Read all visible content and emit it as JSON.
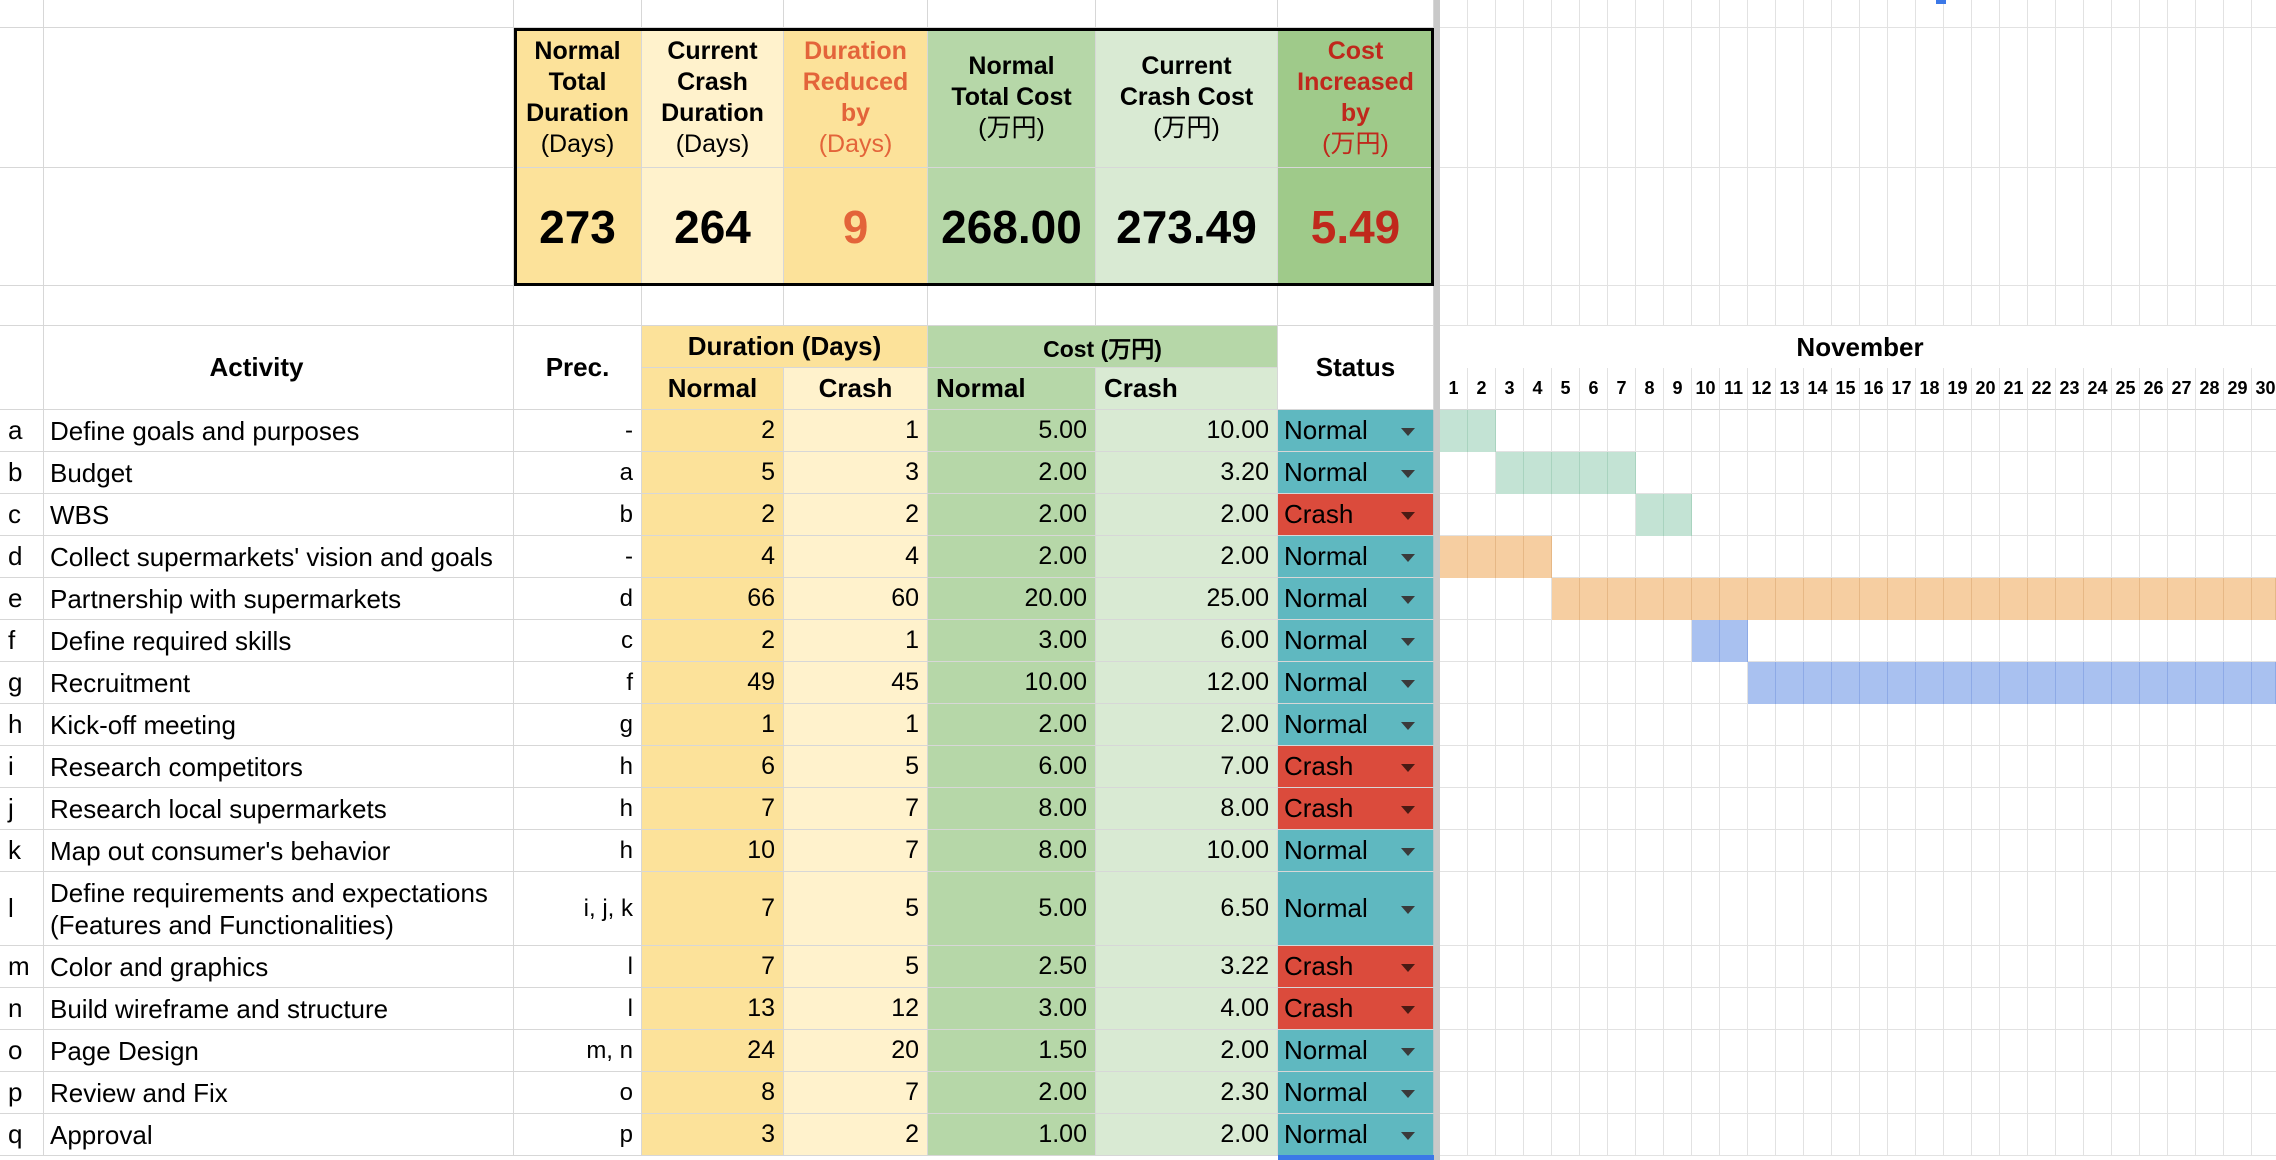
{
  "summary": {
    "headers": [
      {
        "lines": [
          "Normal",
          "Total",
          "Duration"
        ],
        "unit": "(Days)",
        "color": "#000000",
        "bg": "#fce29a"
      },
      {
        "lines": [
          "Current",
          "Crash",
          "Duration"
        ],
        "unit": "(Days)",
        "color": "#000000",
        "bg": "#fff2cc"
      },
      {
        "lines": [
          "Duration",
          "Reduced",
          "by"
        ],
        "unit": "(Days)",
        "color": "#e3643a",
        "bg": "#fce29a"
      },
      {
        "lines": [
          "Normal",
          "Total Cost"
        ],
        "unit": "(万円)",
        "color": "#000000",
        "bg": "#b6d7a8"
      },
      {
        "lines": [
          "Current",
          "Crash Cost"
        ],
        "unit": "(万円)",
        "color": "#000000",
        "bg": "#d9ead3"
      },
      {
        "lines": [
          "Cost",
          "Increased",
          "by"
        ],
        "unit": "(万円)",
        "color": "#c0281c",
        "bg": "#9fca8a"
      }
    ],
    "values": [
      "273",
      "264",
      "9",
      "268.00",
      "273.49",
      "5.49"
    ]
  },
  "table": {
    "activity_header": "Activity",
    "prec_header": "Prec.",
    "duration_header": "Duration (Days)",
    "cost_header": "Cost (万円)",
    "status_header": "Status",
    "normal_label": "Normal",
    "crash_label": "Crash",
    "rows": [
      {
        "id": "a",
        "name": "Define goals and purposes",
        "prec": "-",
        "dn": "2",
        "dc": "1",
        "cn": "5.00",
        "cc": "10.00",
        "status": "Normal"
      },
      {
        "id": "b",
        "name": "Budget",
        "prec": "a",
        "dn": "5",
        "dc": "3",
        "cn": "2.00",
        "cc": "3.20",
        "status": "Normal"
      },
      {
        "id": "c",
        "name": "WBS",
        "prec": "b",
        "dn": "2",
        "dc": "2",
        "cn": "2.00",
        "cc": "2.00",
        "status": "Crash"
      },
      {
        "id": "d",
        "name": "Collect supermarkets' vision and goals",
        "prec": "-",
        "dn": "4",
        "dc": "4",
        "cn": "2.00",
        "cc": "2.00",
        "status": "Normal"
      },
      {
        "id": "e",
        "name": "Partnership with supermarkets",
        "prec": "d",
        "dn": "66",
        "dc": "60",
        "cn": "20.00",
        "cc": "25.00",
        "status": "Normal"
      },
      {
        "id": "f",
        "name": "Define required skills",
        "prec": "c",
        "dn": "2",
        "dc": "1",
        "cn": "3.00",
        "cc": "6.00",
        "status": "Normal"
      },
      {
        "id": "g",
        "name": "Recruitment",
        "prec": "f",
        "dn": "49",
        "dc": "45",
        "cn": "10.00",
        "cc": "12.00",
        "status": "Normal"
      },
      {
        "id": "h",
        "name": "Kick-off meeting",
        "prec": "g",
        "dn": "1",
        "dc": "1",
        "cn": "2.00",
        "cc": "2.00",
        "status": "Normal"
      },
      {
        "id": "i",
        "name": "Research competitors",
        "prec": "h",
        "dn": "6",
        "dc": "5",
        "cn": "6.00",
        "cc": "7.00",
        "status": "Crash"
      },
      {
        "id": "j",
        "name": "Research local supermarkets",
        "prec": "h",
        "dn": "7",
        "dc": "7",
        "cn": "8.00",
        "cc": "8.00",
        "status": "Crash"
      },
      {
        "id": "k",
        "name": "Map out consumer's behavior",
        "prec": "h",
        "dn": "10",
        "dc": "7",
        "cn": "8.00",
        "cc": "10.00",
        "status": "Normal"
      },
      {
        "id": "l",
        "name": "Define requirements and expectations (Features and Functionalities)",
        "prec": "i, j, k",
        "dn": "7",
        "dc": "5",
        "cn": "5.00",
        "cc": "6.50",
        "status": "Normal"
      },
      {
        "id": "m",
        "name": "Color and graphics",
        "prec": "l",
        "dn": "7",
        "dc": "5",
        "cn": "2.50",
        "cc": "3.22",
        "status": "Crash"
      },
      {
        "id": "n",
        "name": "Build wireframe and structure",
        "prec": "l",
        "dn": "13",
        "dc": "12",
        "cn": "3.00",
        "cc": "4.00",
        "status": "Crash"
      },
      {
        "id": "o",
        "name": "Page Design",
        "prec": "m, n",
        "dn": "24",
        "dc": "20",
        "cn": "1.50",
        "cc": "2.00",
        "status": "Normal"
      },
      {
        "id": "p",
        "name": "Review and Fix",
        "prec": "o",
        "dn": "8",
        "dc": "7",
        "cn": "2.00",
        "cc": "2.30",
        "status": "Normal"
      },
      {
        "id": "q",
        "name": "Approval",
        "prec": "p",
        "dn": "3",
        "dc": "2",
        "cn": "1.00",
        "cc": "2.00",
        "status": "Normal"
      }
    ]
  },
  "gantt": {
    "month": "November",
    "days": [
      "1",
      "2",
      "3",
      "4",
      "5",
      "6",
      "7",
      "8",
      "9",
      "10",
      "11",
      "12",
      "13",
      "14",
      "15",
      "16",
      "17",
      "18",
      "19",
      "20",
      "21",
      "22",
      "23",
      "24",
      "25",
      "26",
      "27",
      "28",
      "29",
      "30"
    ],
    "bars": [
      {
        "row": 0,
        "start_day": 1,
        "end_day": 2,
        "color": "teal"
      },
      {
        "row": 1,
        "start_day": 3,
        "end_day": 7,
        "color": "teal"
      },
      {
        "row": 2,
        "start_day": 8,
        "end_day": 9,
        "color": "teal"
      },
      {
        "row": 3,
        "start_day": 1,
        "end_day": 4,
        "color": "orange"
      },
      {
        "row": 4,
        "start_day": 5,
        "end_day": 30,
        "color": "orange"
      },
      {
        "row": 5,
        "start_day": 10,
        "end_day": 11,
        "color": "blue"
      },
      {
        "row": 6,
        "start_day": 12,
        "end_day": 30,
        "color": "blue"
      }
    ]
  },
  "colors": {
    "status_normal": "#5fb8c0",
    "status_crash": "#db4b3c",
    "duration_normal": "#fce29a",
    "duration_crash": "#fff2cc",
    "cost_normal": "#b6d7a8",
    "cost_crash": "#d9ead3"
  }
}
